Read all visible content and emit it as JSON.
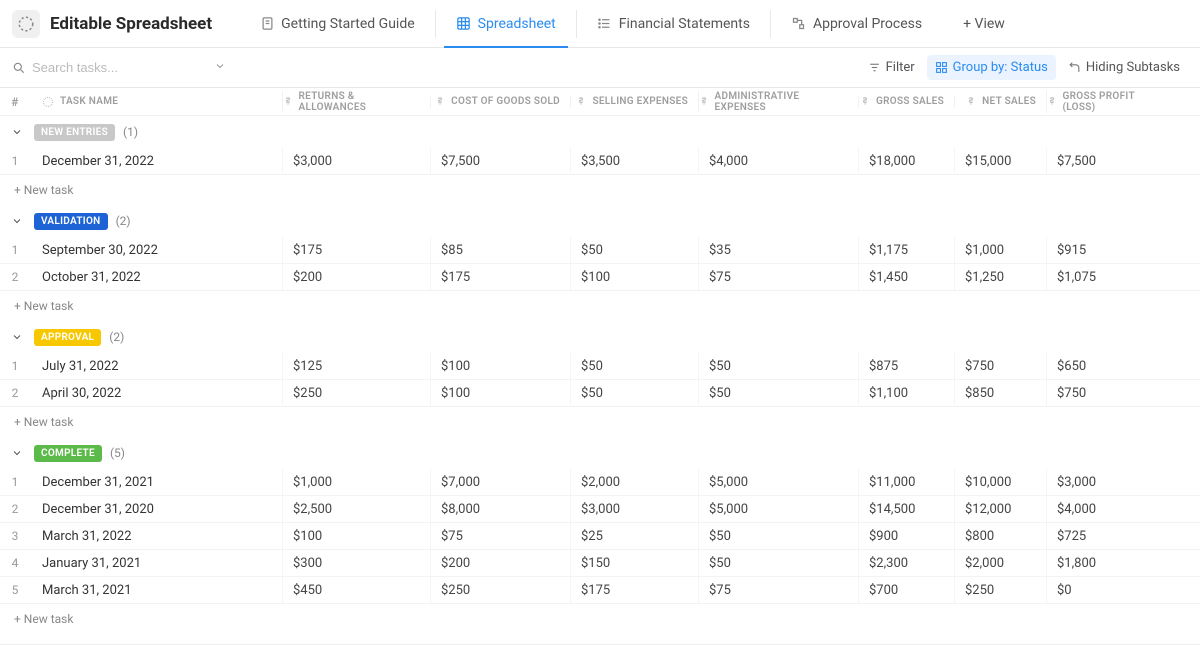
{
  "header": {
    "title": "Editable Spreadsheet",
    "tabs": [
      {
        "label": "Getting Started Guide",
        "active": false
      },
      {
        "label": "Spreadsheet",
        "active": true
      },
      {
        "label": "Financial Statements",
        "active": false
      },
      {
        "label": "Approval Process",
        "active": false
      }
    ],
    "add_view": "+ View"
  },
  "toolbar": {
    "search_placeholder": "Search tasks...",
    "filter": "Filter",
    "group_by": "Group by: Status",
    "hiding": "Hiding Subtasks"
  },
  "columns": {
    "num": "#",
    "task_name": "TASK NAME",
    "returns": "RETURNS & ALLOWANCES",
    "cogs": "COST OF GOODS SOLD",
    "selling": "SELLING EXPENSES",
    "admin": "ADMINISTRATIVE EXPENSES",
    "gross": "GROSS SALES",
    "net": "NET SALES",
    "profit": "GROSS PROFIT (LOSS)"
  },
  "new_task_label": "+ New task",
  "group_colors": {
    "new_entries": "#c8c8c8",
    "validation": "#1e63d6",
    "approval": "#f7c800",
    "complete": "#5bba4a"
  },
  "groups": [
    {
      "key": "new_entries",
      "label": "NEW ENTRIES",
      "count": "(1)",
      "rows": [
        {
          "n": "1",
          "name": "December 31, 2022",
          "returns": "$3,000",
          "cogs": "$7,500",
          "selling": "$3,500",
          "admin": "$4,000",
          "gross": "$18,000",
          "net": "$15,000",
          "profit": "$7,500"
        }
      ]
    },
    {
      "key": "validation",
      "label": "VALIDATION",
      "count": "(2)",
      "rows": [
        {
          "n": "1",
          "name": "September 30, 2022",
          "returns": "$175",
          "cogs": "$85",
          "selling": "$50",
          "admin": "$35",
          "gross": "$1,175",
          "net": "$1,000",
          "profit": "$915"
        },
        {
          "n": "2",
          "name": "October 31, 2022",
          "returns": "$200",
          "cogs": "$175",
          "selling": "$100",
          "admin": "$75",
          "gross": "$1,450",
          "net": "$1,250",
          "profit": "$1,075"
        }
      ]
    },
    {
      "key": "approval",
      "label": "APPROVAL",
      "count": "(2)",
      "rows": [
        {
          "n": "1",
          "name": "July 31, 2022",
          "returns": "$125",
          "cogs": "$100",
          "selling": "$50",
          "admin": "$50",
          "gross": "$875",
          "net": "$750",
          "profit": "$650"
        },
        {
          "n": "2",
          "name": "April 30, 2022",
          "returns": "$250",
          "cogs": "$100",
          "selling": "$50",
          "admin": "$50",
          "gross": "$1,100",
          "net": "$850",
          "profit": "$750"
        }
      ]
    },
    {
      "key": "complete",
      "label": "COMPLETE",
      "count": "(5)",
      "rows": [
        {
          "n": "1",
          "name": "December 31, 2021",
          "returns": "$1,000",
          "cogs": "$7,000",
          "selling": "$2,000",
          "admin": "$5,000",
          "gross": "$11,000",
          "net": "$10,000",
          "profit": "$3,000"
        },
        {
          "n": "2",
          "name": "December 31, 2020",
          "returns": "$2,500",
          "cogs": "$8,000",
          "selling": "$3,000",
          "admin": "$5,000",
          "gross": "$14,500",
          "net": "$12,000",
          "profit": "$4,000"
        },
        {
          "n": "3",
          "name": "March 31, 2022",
          "returns": "$100",
          "cogs": "$75",
          "selling": "$25",
          "admin": "$50",
          "gross": "$900",
          "net": "$800",
          "profit": "$725"
        },
        {
          "n": "4",
          "name": "January 31, 2021",
          "returns": "$300",
          "cogs": "$200",
          "selling": "$150",
          "admin": "$50",
          "gross": "$2,300",
          "net": "$2,000",
          "profit": "$1,800"
        },
        {
          "n": "5",
          "name": "March 31, 2021",
          "returns": "$450",
          "cogs": "$250",
          "selling": "$175",
          "admin": "$75",
          "gross": "$700",
          "net": "$250",
          "profit": "$0"
        }
      ]
    }
  ]
}
